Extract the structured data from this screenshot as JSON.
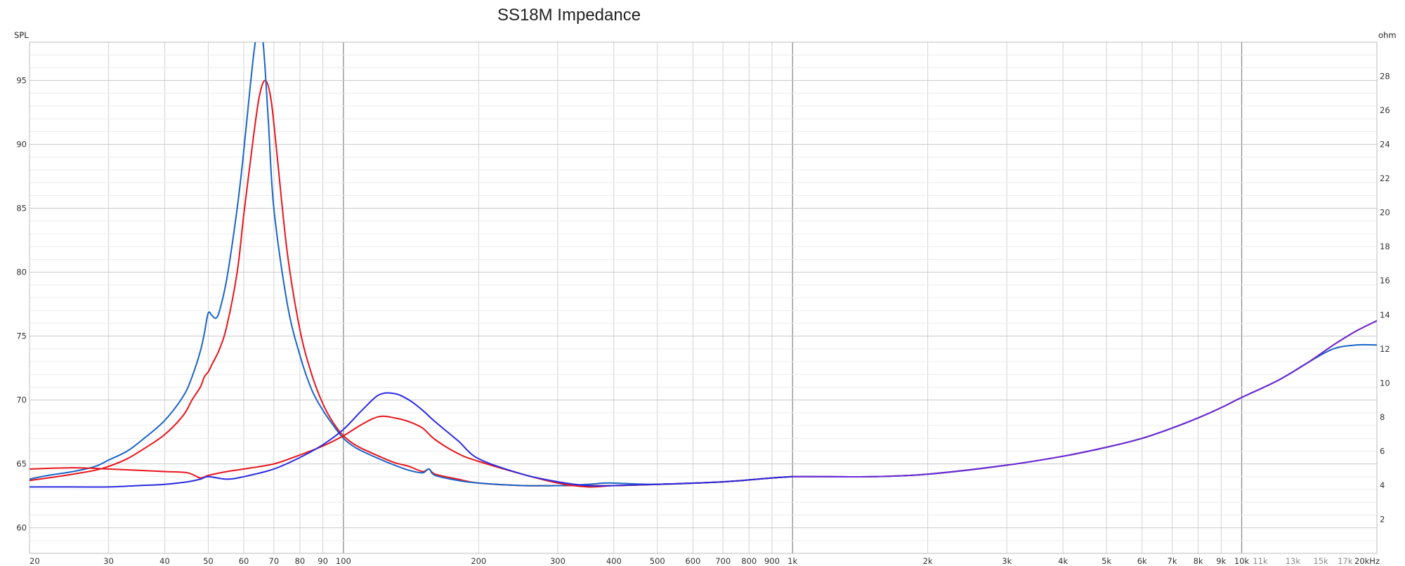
{
  "chart_data": {
    "type": "line",
    "title": "SS18M Impedance",
    "ylabel_left": "SPL",
    "ylabel_right": "ohm",
    "x_scale": "log",
    "xlim": [
      20,
      20000
    ],
    "ylim_left": [
      58,
      98
    ],
    "ylim_right": [
      0,
      30
    ],
    "grid": true,
    "legend": "none",
    "x_ticks": [
      {
        "v": 20,
        "label": "20"
      },
      {
        "v": 30,
        "label": "30"
      },
      {
        "v": 40,
        "label": "40"
      },
      {
        "v": 50,
        "label": "50"
      },
      {
        "v": 60,
        "label": "60"
      },
      {
        "v": 70,
        "label": "70"
      },
      {
        "v": 80,
        "label": "80"
      },
      {
        "v": 90,
        "label": "90"
      },
      {
        "v": 100,
        "label": "100"
      },
      {
        "v": 200,
        "label": "200"
      },
      {
        "v": 300,
        "label": "300"
      },
      {
        "v": 400,
        "label": "400"
      },
      {
        "v": 500,
        "label": "500"
      },
      {
        "v": 600,
        "label": "600"
      },
      {
        "v": 700,
        "label": "700"
      },
      {
        "v": 800,
        "label": "800"
      },
      {
        "v": 900,
        "label": "900"
      },
      {
        "v": 1000,
        "label": "1k"
      },
      {
        "v": 2000,
        "label": "2k"
      },
      {
        "v": 3000,
        "label": "3k"
      },
      {
        "v": 4000,
        "label": "4k"
      },
      {
        "v": 5000,
        "label": "5k"
      },
      {
        "v": 6000,
        "label": "6k"
      },
      {
        "v": 7000,
        "label": "7k"
      },
      {
        "v": 8000,
        "label": "8k"
      },
      {
        "v": 9000,
        "label": "9k"
      },
      {
        "v": 10000,
        "label": "10k"
      },
      {
        "v": 11000,
        "label": "11k",
        "minor": true
      },
      {
        "v": 13000,
        "label": "13k",
        "minor": true
      },
      {
        "v": 15000,
        "label": "15k",
        "minor": true
      },
      {
        "v": 17000,
        "label": "17k",
        "minor": true
      },
      {
        "v": 20000,
        "label": "20kHz"
      }
    ],
    "y_ticks_left": [
      60,
      65,
      70,
      75,
      80,
      85,
      90,
      95
    ],
    "y_ticks_right": [
      2,
      4,
      6,
      8,
      10,
      12,
      14,
      16,
      18,
      20,
      22,
      24,
      26,
      28
    ],
    "colors": {
      "red": "#e8141c",
      "dark_blue": "#1a64c8",
      "blue": "#2a2ae0",
      "purple": "#6a2ad8"
    },
    "series": [
      {
        "color": "#e8141c",
        "axis": "left",
        "x": [
          20,
          22,
          25,
          28,
          30,
          33,
          36,
          40,
          44,
          46,
          48,
          49,
          50,
          51,
          53,
          55,
          58,
          60,
          63,
          65,
          67,
          69,
          71,
          75,
          80,
          85,
          90,
          95,
          100,
          105,
          110,
          120,
          130,
          140,
          150,
          155,
          160,
          180,
          200,
          250,
          300,
          400,
          500,
          700,
          900,
          1000,
          1200,
          1500,
          2000,
          3000,
          4000,
          5000,
          6000,
          7000,
          8000,
          9000,
          10000,
          12000,
          14000,
          16000,
          18000,
          20000
        ],
        "y": [
          63.7,
          63.9,
          64.2,
          64.5,
          64.8,
          65.4,
          66.2,
          67.3,
          68.8,
          70.0,
          71.0,
          71.8,
          72.2,
          72.8,
          74.0,
          75.8,
          80.0,
          84.5,
          90.5,
          93.8,
          95.0,
          93.5,
          89.5,
          81.5,
          75.5,
          72.0,
          69.7,
          68.2,
          67.2,
          66.6,
          66.2,
          65.6,
          65.1,
          64.8,
          64.4,
          64.6,
          64.2,
          63.8,
          63.5,
          63.3,
          63.3,
          63.3,
          63.4,
          63.6,
          63.9,
          64.0,
          64.0,
          64.0,
          64.2,
          64.9,
          65.6,
          66.3,
          67.0,
          67.8,
          68.6,
          69.4,
          70.2,
          71.5,
          72.9,
          74.3,
          75.4,
          76.2
        ]
      },
      {
        "color": "#1a64c8",
        "axis": "left",
        "x": [
          20,
          22,
          25,
          28,
          30,
          33,
          36,
          40,
          44,
          46,
          48,
          49,
          50,
          51,
          52,
          53,
          55,
          58,
          60,
          62,
          64,
          66,
          68,
          70,
          75,
          80,
          85,
          90,
          95,
          100,
          105,
          110,
          120,
          130,
          140,
          150,
          155,
          160,
          180,
          200,
          250,
          300,
          350,
          380,
          400,
          500,
          700,
          900,
          1000,
          1200,
          1500,
          2000,
          3000,
          4000,
          5000,
          6000,
          7000,
          8000,
          9000,
          10000,
          12000,
          14000,
          16000,
          18000,
          20000
        ],
        "y": [
          63.8,
          64.1,
          64.4,
          64.8,
          65.3,
          66.0,
          67.0,
          68.4,
          70.3,
          71.8,
          73.8,
          75.2,
          76.8,
          76.6,
          76.4,
          77.0,
          79.5,
          85.0,
          89.5,
          94.5,
          98.5,
          98.5,
          92.0,
          85.0,
          77.5,
          73.5,
          70.8,
          69.2,
          68.0,
          67.0,
          66.4,
          66.0,
          65.4,
          64.9,
          64.5,
          64.3,
          64.6,
          64.1,
          63.7,
          63.5,
          63.3,
          63.3,
          63.4,
          63.5,
          63.5,
          63.4,
          63.6,
          63.9,
          64.0,
          64.0,
          64.0,
          64.2,
          64.9,
          65.6,
          66.3,
          67.0,
          67.8,
          68.6,
          69.4,
          70.2,
          71.5,
          72.9,
          74.0,
          74.3,
          74.3
        ]
      },
      {
        "color": "#e8141c",
        "axis": "left",
        "x": [
          20,
          25,
          30,
          35,
          40,
          45,
          48,
          50,
          55,
          60,
          70,
          80,
          90,
          100,
          110,
          120,
          130,
          140,
          150,
          160,
          180,
          200,
          250,
          300,
          350,
          400,
          500,
          700,
          900,
          1000
        ],
        "y": [
          64.6,
          64.7,
          64.6,
          64.5,
          64.4,
          64.3,
          63.9,
          64.1,
          64.4,
          64.6,
          65.0,
          65.7,
          66.4,
          67.2,
          68.1,
          68.7,
          68.6,
          68.3,
          67.8,
          66.9,
          65.8,
          65.2,
          64.2,
          63.5,
          63.2,
          63.3,
          63.4,
          63.6,
          63.9,
          64.0
        ]
      },
      {
        "color": "#2a2ae0",
        "axis": "left",
        "x": [
          20,
          25,
          30,
          35,
          40,
          45,
          48,
          50,
          55,
          60,
          70,
          80,
          90,
          100,
          110,
          120,
          130,
          140,
          150,
          160,
          180,
          200,
          250,
          300,
          350,
          400,
          500,
          700,
          900,
          1000
        ],
        "y": [
          63.2,
          63.2,
          63.2,
          63.3,
          63.4,
          63.6,
          63.8,
          64.0,
          63.8,
          64.0,
          64.6,
          65.5,
          66.5,
          67.7,
          69.2,
          70.4,
          70.5,
          70.0,
          69.2,
          68.3,
          66.8,
          65.4,
          64.2,
          63.6,
          63.3,
          63.3,
          63.4,
          63.6,
          63.9,
          64.0
        ]
      },
      {
        "color": "#6a2ad8",
        "axis": "left",
        "x": [
          1000,
          1200,
          1500,
          2000,
          3000,
          4000,
          5000,
          6000,
          7000,
          8000,
          9000,
          10000,
          12000,
          14000,
          16000,
          18000,
          20000
        ],
        "y": [
          64.0,
          64.0,
          64.0,
          64.2,
          64.9,
          65.6,
          66.3,
          67.0,
          67.8,
          68.6,
          69.4,
          70.2,
          71.5,
          72.9,
          74.3,
          75.4,
          76.2
        ]
      }
    ]
  }
}
